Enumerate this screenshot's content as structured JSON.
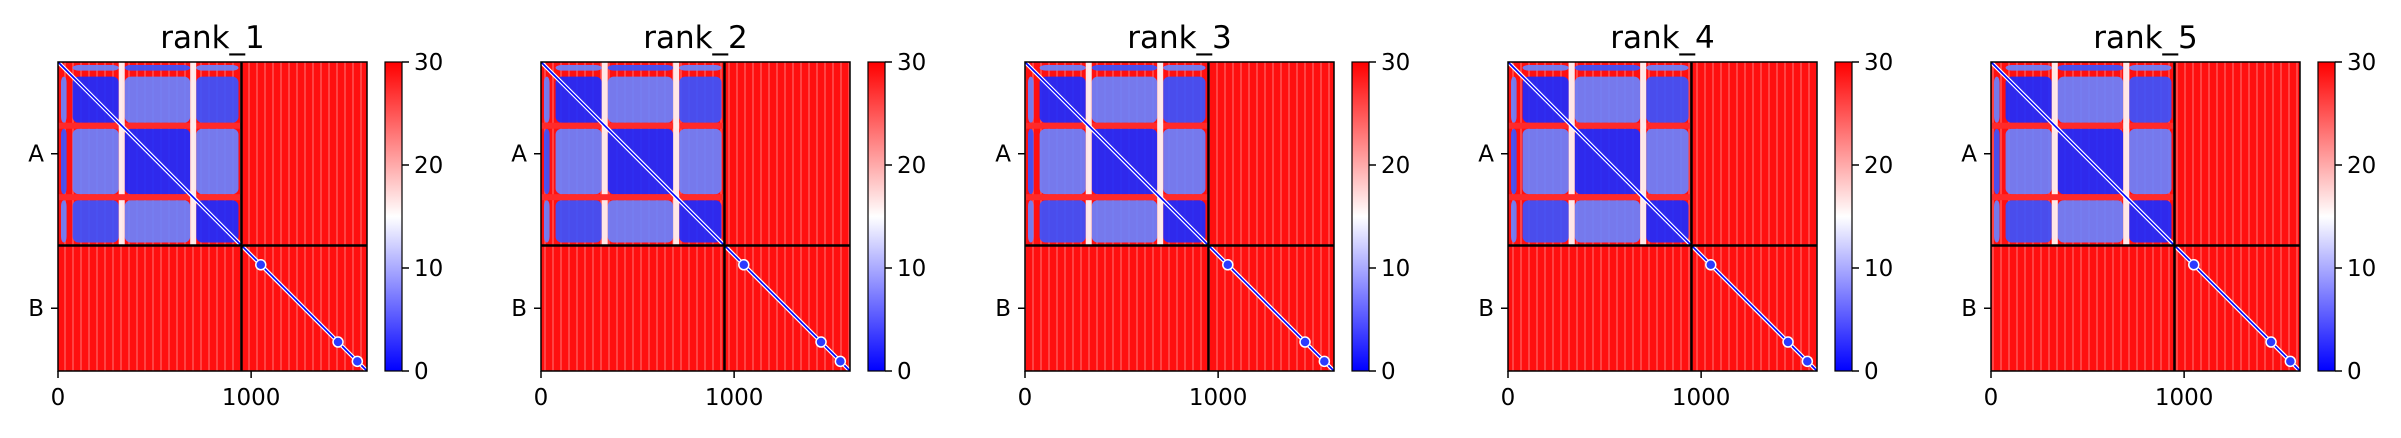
{
  "chart_data": [
    {
      "type": "heatmap",
      "title": "rank_1",
      "x": {
        "range": [
          0,
          1600
        ],
        "ticks": [
          0,
          1000
        ]
      },
      "y": {
        "categories": [
          "A",
          "B"
        ],
        "split": 950,
        "max": 1600
      },
      "colorbar": {
        "range": [
          0,
          30
        ],
        "ticks": [
          0,
          10,
          20,
          30
        ],
        "colormap": [
          "#0000ff",
          "#ffffff",
          "#ff0000"
        ]
      }
    },
    {
      "type": "heatmap",
      "title": "rank_2",
      "x": {
        "range": [
          0,
          1600
        ],
        "ticks": [
          0,
          1000
        ]
      },
      "y": {
        "categories": [
          "A",
          "B"
        ],
        "split": 950,
        "max": 1600
      },
      "colorbar": {
        "range": [
          0,
          30
        ],
        "ticks": [
          0,
          10,
          20,
          30
        ],
        "colormap": [
          "#0000ff",
          "#ffffff",
          "#ff0000"
        ]
      }
    },
    {
      "type": "heatmap",
      "title": "rank_3",
      "x": {
        "range": [
          0,
          1600
        ],
        "ticks": [
          0,
          1000
        ]
      },
      "y": {
        "categories": [
          "A",
          "B"
        ],
        "split": 950,
        "max": 1600
      },
      "colorbar": {
        "range": [
          0,
          30
        ],
        "ticks": [
          0,
          10,
          20,
          30
        ],
        "colormap": [
          "#0000ff",
          "#ffffff",
          "#ff0000"
        ]
      }
    },
    {
      "type": "heatmap",
      "title": "rank_4",
      "x": {
        "range": [
          0,
          1600
        ],
        "ticks": [
          0,
          1000
        ]
      },
      "y": {
        "categories": [
          "A",
          "B"
        ],
        "split": 950,
        "max": 1600
      },
      "colorbar": {
        "range": [
          0,
          30
        ],
        "ticks": [
          0,
          10,
          20,
          30
        ],
        "colormap": [
          "#0000ff",
          "#ffffff",
          "#ff0000"
        ]
      }
    },
    {
      "type": "heatmap",
      "title": "rank_5",
      "x": {
        "range": [
          0,
          1600
        ],
        "ticks": [
          0,
          1000
        ]
      },
      "y": {
        "categories": [
          "A",
          "B"
        ],
        "split": 950,
        "max": 1600
      },
      "colorbar": {
        "range": [
          0,
          30
        ],
        "ticks": [
          0,
          10,
          20,
          30
        ],
        "colormap": [
          "#0000ff",
          "#ffffff",
          "#ff0000"
        ]
      }
    }
  ]
}
